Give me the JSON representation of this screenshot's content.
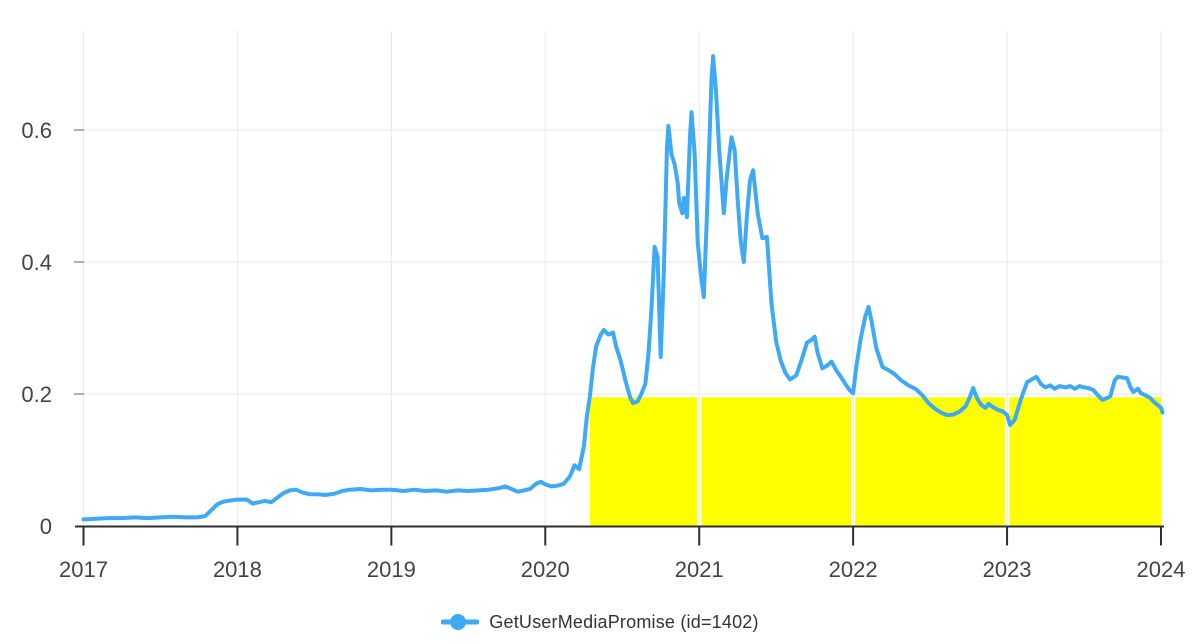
{
  "page": {
    "background": "#ffffff"
  },
  "legend": {
    "label": "GetUserMediaPromise (id=1402)",
    "marker": "line-dot-icon"
  },
  "colors": {
    "line": "#3ea9f5",
    "highlight": "#ffff00",
    "grid": "#ececec",
    "axis": "#2f2f2f",
    "tick_text": "#444444",
    "y_tick_mark": "#999999",
    "legend_text": "#333333"
  },
  "chart_data": {
    "type": "line",
    "title": "",
    "xlabel": "",
    "ylabel": "",
    "x_ticks": [
      2017,
      2018,
      2019,
      2020,
      2021,
      2022,
      2023,
      2024
    ],
    "y_ticks": [
      0,
      0.2,
      0.4,
      0.6
    ],
    "xlim": [
      2017,
      2024.03
    ],
    "ylim": [
      0,
      0.75
    ],
    "grid": true,
    "legend_position": "bottom",
    "highlight_regions": [
      {
        "x0": 2020.29,
        "x1": 2020.985,
        "y0": 0,
        "y1": 0.195,
        "color": "#ffff00"
      },
      {
        "x0": 2021.015,
        "x1": 2021.985,
        "y0": 0,
        "y1": 0.195,
        "color": "#ffff00"
      },
      {
        "x0": 2022.015,
        "x1": 2022.985,
        "y0": 0,
        "y1": 0.195,
        "color": "#ffff00"
      },
      {
        "x0": 2023.015,
        "x1": 2024.0,
        "y0": 0,
        "y1": 0.195,
        "color": "#ffff00"
      }
    ],
    "series": [
      {
        "name": "GetUserMediaPromise (id=1402)",
        "color": "#3ea9f5",
        "points": [
          [
            2017.0,
            0.01
          ],
          [
            2017.08,
            0.011
          ],
          [
            2017.16,
            0.012
          ],
          [
            2017.25,
            0.012
          ],
          [
            2017.33,
            0.013
          ],
          [
            2017.42,
            0.012
          ],
          [
            2017.5,
            0.013
          ],
          [
            2017.58,
            0.014
          ],
          [
            2017.66,
            0.013
          ],
          [
            2017.74,
            0.013
          ],
          [
            2017.79,
            0.015
          ],
          [
            2017.83,
            0.024
          ],
          [
            2017.87,
            0.033
          ],
          [
            2017.91,
            0.037
          ],
          [
            2017.96,
            0.039
          ],
          [
            2018.0,
            0.04
          ],
          [
            2018.06,
            0.04
          ],
          [
            2018.1,
            0.034
          ],
          [
            2018.14,
            0.036
          ],
          [
            2018.18,
            0.038
          ],
          [
            2018.22,
            0.036
          ],
          [
            2018.26,
            0.043
          ],
          [
            2018.3,
            0.05
          ],
          [
            2018.34,
            0.054
          ],
          [
            2018.38,
            0.055
          ],
          [
            2018.42,
            0.051
          ],
          [
            2018.47,
            0.048
          ],
          [
            2018.52,
            0.048
          ],
          [
            2018.57,
            0.047
          ],
          [
            2018.63,
            0.049
          ],
          [
            2018.68,
            0.053
          ],
          [
            2018.73,
            0.055
          ],
          [
            2018.8,
            0.056
          ],
          [
            2018.87,
            0.054
          ],
          [
            2018.94,
            0.055
          ],
          [
            2019.0,
            0.055
          ],
          [
            2019.08,
            0.053
          ],
          [
            2019.15,
            0.055
          ],
          [
            2019.22,
            0.053
          ],
          [
            2019.29,
            0.054
          ],
          [
            2019.36,
            0.052
          ],
          [
            2019.43,
            0.054
          ],
          [
            2019.5,
            0.053
          ],
          [
            2019.57,
            0.054
          ],
          [
            2019.63,
            0.055
          ],
          [
            2019.69,
            0.057
          ],
          [
            2019.74,
            0.06
          ],
          [
            2019.78,
            0.056
          ],
          [
            2019.82,
            0.052
          ],
          [
            2019.86,
            0.054
          ],
          [
            2019.9,
            0.056
          ],
          [
            2019.94,
            0.064
          ],
          [
            2019.97,
            0.067
          ],
          [
            2020.0,
            0.063
          ],
          [
            2020.04,
            0.06
          ],
          [
            2020.08,
            0.061
          ],
          [
            2020.12,
            0.064
          ],
          [
            2020.16,
            0.075
          ],
          [
            2020.19,
            0.092
          ],
          [
            2020.22,
            0.086
          ],
          [
            2020.25,
            0.12
          ],
          [
            2020.27,
            0.165
          ],
          [
            2020.29,
            0.197
          ],
          [
            2020.31,
            0.24
          ],
          [
            2020.33,
            0.272
          ],
          [
            2020.36,
            0.29
          ],
          [
            2020.38,
            0.297
          ],
          [
            2020.41,
            0.29
          ],
          [
            2020.44,
            0.293
          ],
          [
            2020.46,
            0.272
          ],
          [
            2020.49,
            0.25
          ],
          [
            2020.52,
            0.221
          ],
          [
            2020.55,
            0.196
          ],
          [
            2020.57,
            0.186
          ],
          [
            2020.6,
            0.189
          ],
          [
            2020.62,
            0.198
          ],
          [
            2020.65,
            0.215
          ],
          [
            2020.67,
            0.26
          ],
          [
            2020.69,
            0.33
          ],
          [
            2020.71,
            0.423
          ],
          [
            2020.73,
            0.408
          ],
          [
            2020.75,
            0.256
          ],
          [
            2020.77,
            0.383
          ],
          [
            2020.79,
            0.57
          ],
          [
            2020.8,
            0.606
          ],
          [
            2020.82,
            0.563
          ],
          [
            2020.84,
            0.548
          ],
          [
            2020.86,
            0.52
          ],
          [
            2020.87,
            0.489
          ],
          [
            2020.89,
            0.474
          ],
          [
            2020.9,
            0.497
          ],
          [
            2020.92,
            0.468
          ],
          [
            2020.94,
            0.59
          ],
          [
            2020.95,
            0.627
          ],
          [
            2020.97,
            0.565
          ],
          [
            2020.99,
            0.43
          ],
          [
            2021.01,
            0.383
          ],
          [
            2021.03,
            0.347
          ],
          [
            2021.05,
            0.47
          ],
          [
            2021.06,
            0.539
          ],
          [
            2021.08,
            0.676
          ],
          [
            2021.09,
            0.712
          ],
          [
            2021.11,
            0.656
          ],
          [
            2021.13,
            0.57
          ],
          [
            2021.16,
            0.474
          ],
          [
            2021.18,
            0.53
          ],
          [
            2021.21,
            0.589
          ],
          [
            2021.23,
            0.57
          ],
          [
            2021.25,
            0.494
          ],
          [
            2021.27,
            0.43
          ],
          [
            2021.29,
            0.4
          ],
          [
            2021.31,
            0.47
          ],
          [
            2021.33,
            0.524
          ],
          [
            2021.35,
            0.539
          ],
          [
            2021.38,
            0.474
          ],
          [
            2021.41,
            0.436
          ],
          [
            2021.44,
            0.438
          ],
          [
            2021.47,
            0.337
          ],
          [
            2021.5,
            0.279
          ],
          [
            2021.53,
            0.25
          ],
          [
            2021.56,
            0.232
          ],
          [
            2021.59,
            0.222
          ],
          [
            2021.63,
            0.228
          ],
          [
            2021.66,
            0.248
          ],
          [
            2021.7,
            0.278
          ],
          [
            2021.73,
            0.282
          ],
          [
            2021.75,
            0.287
          ],
          [
            2021.77,
            0.262
          ],
          [
            2021.8,
            0.239
          ],
          [
            2021.83,
            0.243
          ],
          [
            2021.86,
            0.249
          ],
          [
            2021.89,
            0.236
          ],
          [
            2021.92,
            0.226
          ],
          [
            2021.95,
            0.215
          ],
          [
            2021.98,
            0.205
          ],
          [
            2022.0,
            0.201
          ],
          [
            2022.02,
            0.24
          ],
          [
            2022.05,
            0.285
          ],
          [
            2022.08,
            0.318
          ],
          [
            2022.1,
            0.332
          ],
          [
            2022.12,
            0.31
          ],
          [
            2022.15,
            0.27
          ],
          [
            2022.19,
            0.241
          ],
          [
            2022.23,
            0.236
          ],
          [
            2022.27,
            0.23
          ],
          [
            2022.31,
            0.221
          ],
          [
            2022.36,
            0.213
          ],
          [
            2022.41,
            0.207
          ],
          [
            2022.45,
            0.198
          ],
          [
            2022.49,
            0.186
          ],
          [
            2022.53,
            0.178
          ],
          [
            2022.57,
            0.172
          ],
          [
            2022.61,
            0.168
          ],
          [
            2022.65,
            0.169
          ],
          [
            2022.69,
            0.173
          ],
          [
            2022.73,
            0.181
          ],
          [
            2022.76,
            0.196
          ],
          [
            2022.78,
            0.209
          ],
          [
            2022.8,
            0.196
          ],
          [
            2022.83,
            0.184
          ],
          [
            2022.86,
            0.179
          ],
          [
            2022.88,
            0.185
          ],
          [
            2022.91,
            0.18
          ],
          [
            2022.94,
            0.176
          ],
          [
            2022.97,
            0.174
          ],
          [
            2023.0,
            0.168
          ],
          [
            2023.02,
            0.153
          ],
          [
            2023.05,
            0.161
          ],
          [
            2023.09,
            0.192
          ],
          [
            2023.13,
            0.218
          ],
          [
            2023.16,
            0.222
          ],
          [
            2023.19,
            0.226
          ],
          [
            2023.22,
            0.215
          ],
          [
            2023.25,
            0.21
          ],
          [
            2023.28,
            0.213
          ],
          [
            2023.31,
            0.208
          ],
          [
            2023.34,
            0.212
          ],
          [
            2023.38,
            0.21
          ],
          [
            2023.41,
            0.212
          ],
          [
            2023.44,
            0.208
          ],
          [
            2023.47,
            0.212
          ],
          [
            2023.5,
            0.21
          ],
          [
            2023.53,
            0.209
          ],
          [
            2023.56,
            0.206
          ],
          [
            2023.59,
            0.198
          ],
          [
            2023.62,
            0.191
          ],
          [
            2023.64,
            0.193
          ],
          [
            2023.67,
            0.196
          ],
          [
            2023.7,
            0.221
          ],
          [
            2023.72,
            0.226
          ],
          [
            2023.75,
            0.225
          ],
          [
            2023.78,
            0.224
          ],
          [
            2023.8,
            0.211
          ],
          [
            2023.82,
            0.203
          ],
          [
            2023.85,
            0.208
          ],
          [
            2023.87,
            0.201
          ],
          [
            2023.9,
            0.198
          ],
          [
            2023.93,
            0.194
          ],
          [
            2023.95,
            0.189
          ],
          [
            2023.98,
            0.183
          ],
          [
            2024.0,
            0.179
          ],
          [
            2024.01,
            0.172
          ]
        ]
      }
    ]
  }
}
